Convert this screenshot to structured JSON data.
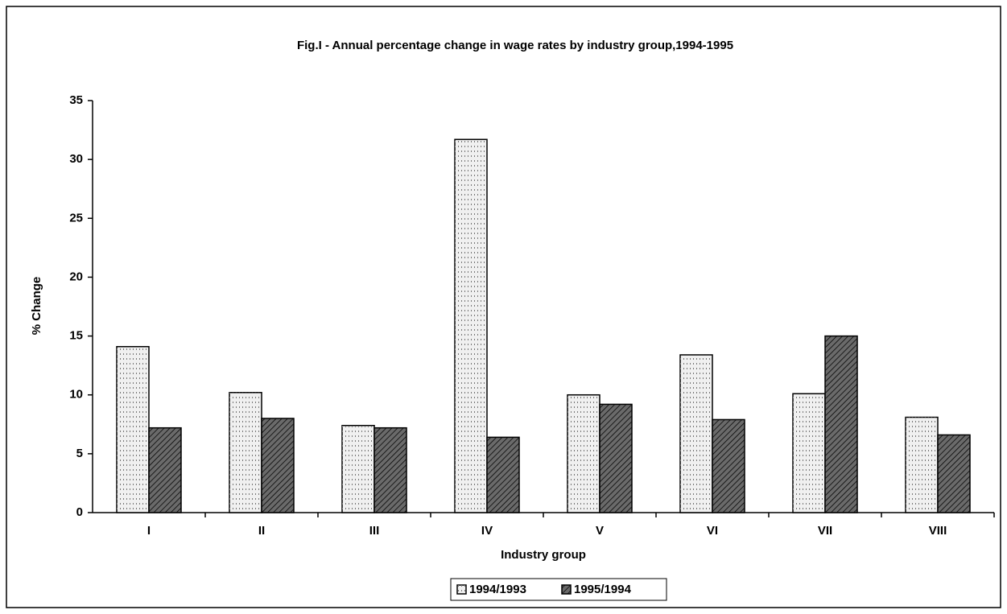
{
  "chart_data": {
    "type": "bar",
    "title": "Fig.I - Annual percentage change in wage rates by industry group,1994-1995",
    "x_label": "Industry group",
    "y_label": "% Change",
    "categories": [
      "I",
      "II",
      "III",
      "IV",
      "V",
      "VI",
      "VII",
      "VIII"
    ],
    "series": [
      {
        "name": "1994/1993",
        "color": "#f0f0f0",
        "values": [
          14.1,
          10.2,
          7.4,
          31.7,
          10.0,
          13.4,
          10.1,
          8.1
        ]
      },
      {
        "name": "1995/1994",
        "color": "#6a6a6a",
        "values": [
          7.2,
          8.0,
          7.2,
          6.4,
          9.2,
          7.9,
          15.0,
          6.6
        ]
      }
    ],
    "ylim": [
      0,
      35
    ],
    "yticks": [
      0,
      5,
      10,
      15,
      20,
      25,
      30,
      35
    ]
  }
}
